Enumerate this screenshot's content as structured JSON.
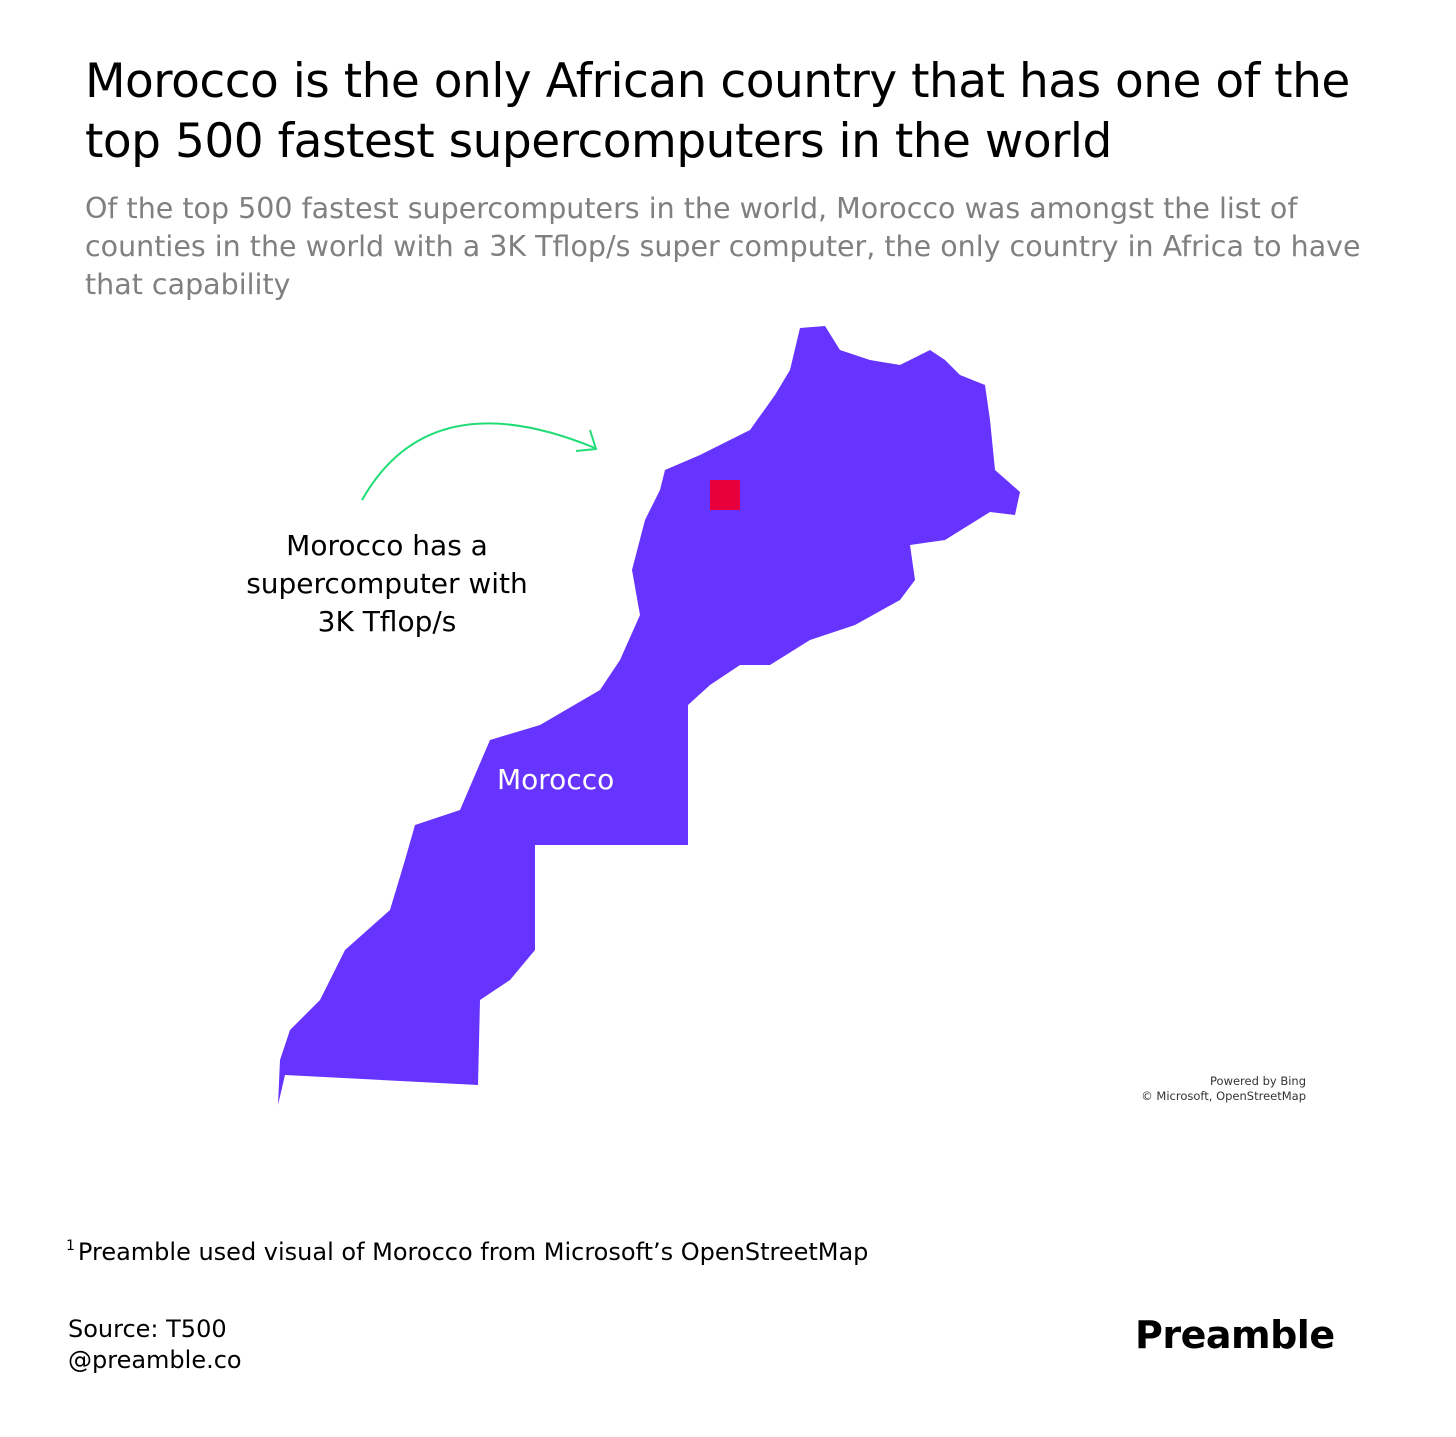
{
  "header": {
    "title": "Morocco is the only African country that has one of the top 500 fastest supercomputers in the world",
    "subtitle": "Of the top 500 fastest supercomputers in the world, Morocco was amongst the list of counties in the world with a 3K Tflop/s super computer, the only country in Africa to have that capability"
  },
  "map": {
    "annotation": "Morocco has a supercomputer with 3K Tflop/s",
    "label": "Morocco",
    "attribution": [
      "Powered by Bing",
      "© Microsoft, OpenStreetMap"
    ]
  },
  "footnote": {
    "marker": "1",
    "text": "Preamble used visual of Morocco from Microsoft’s OpenStreetMap"
  },
  "footer": {
    "source": "Source: T500",
    "handle": "@preamble.co",
    "brand": "Preamble"
  }
}
